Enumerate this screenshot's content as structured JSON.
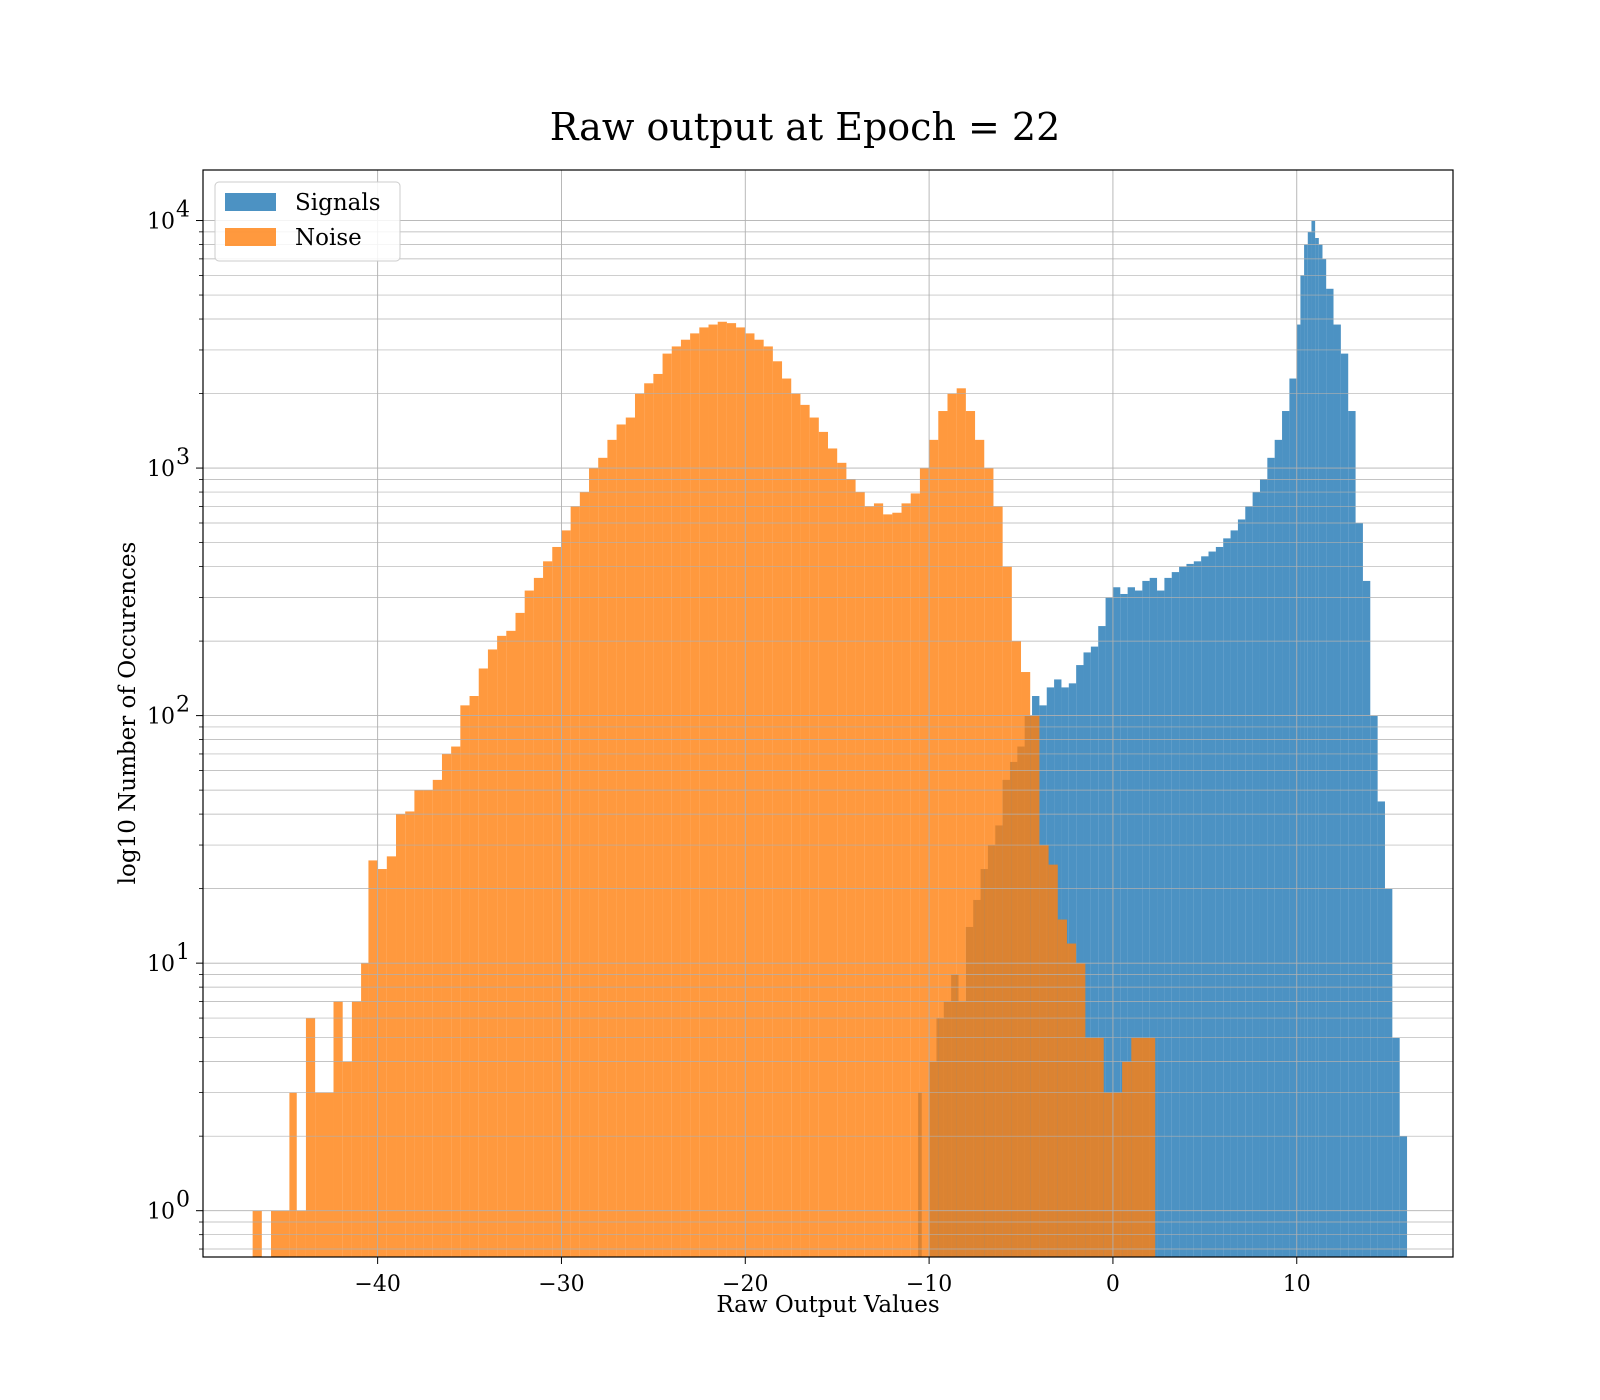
{
  "chart_data": {
    "type": "bar",
    "title": "Raw output at Epoch = 22",
    "xlabel": "Raw Output Values",
    "ylabel": "log10 Number of Occurences",
    "yscale": "log",
    "xlim": [
      -49.5,
      18.5
    ],
    "ylim": [
      0.65,
      16000
    ],
    "grid": true,
    "legend_position": "top-left",
    "x_ticks": [
      -40,
      -30,
      -20,
      -10,
      0,
      10
    ],
    "x_tick_labels": [
      "−40",
      "−30",
      "−20",
      "−10",
      "0",
      "10"
    ],
    "y_ticks": [
      1,
      10,
      100,
      1000,
      10000
    ],
    "y_tick_labels": [
      {
        "base": "10",
        "exp": "0"
      },
      {
        "base": "10",
        "exp": "1"
      },
      {
        "base": "10",
        "exp": "2"
      },
      {
        "base": "10",
        "exp": "3"
      },
      {
        "base": "10",
        "exp": "4"
      }
    ],
    "series": [
      {
        "name": "Signals",
        "color": "#1f77b4",
        "opacity": 0.8,
        "bins": [
          [
            -10.6,
            -10.4,
            3
          ],
          [
            -10.0,
            -9.6,
            4
          ],
          [
            -9.6,
            -9.2,
            6
          ],
          [
            -9.2,
            -8.8,
            7
          ],
          [
            -8.8,
            -8.4,
            9
          ],
          [
            -8.4,
            -8.0,
            7
          ],
          [
            -8.0,
            -7.6,
            14
          ],
          [
            -7.6,
            -7.2,
            18
          ],
          [
            -7.2,
            -6.8,
            24
          ],
          [
            -6.8,
            -6.4,
            30
          ],
          [
            -6.4,
            -6.0,
            36
          ],
          [
            -6.0,
            -5.6,
            55
          ],
          [
            -5.6,
            -5.2,
            65
          ],
          [
            -5.2,
            -4.8,
            75
          ],
          [
            -4.8,
            -4.4,
            100
          ],
          [
            -4.4,
            -4.0,
            120
          ],
          [
            -4.0,
            -3.6,
            110
          ],
          [
            -3.6,
            -3.2,
            130
          ],
          [
            -3.2,
            -2.8,
            140
          ],
          [
            -2.8,
            -2.4,
            130
          ],
          [
            -2.4,
            -2.0,
            135
          ],
          [
            -2.0,
            -1.6,
            160
          ],
          [
            -1.6,
            -1.2,
            180
          ],
          [
            -1.2,
            -0.8,
            190
          ],
          [
            -0.8,
            -0.4,
            230
          ],
          [
            -0.4,
            0.0,
            300
          ],
          [
            0.0,
            0.4,
            330
          ],
          [
            0.4,
            0.8,
            310
          ],
          [
            0.8,
            1.2,
            330
          ],
          [
            1.2,
            1.6,
            320
          ],
          [
            1.6,
            2.0,
            350
          ],
          [
            2.0,
            2.4,
            360
          ],
          [
            2.4,
            2.8,
            320
          ],
          [
            2.8,
            3.2,
            360
          ],
          [
            3.2,
            3.6,
            380
          ],
          [
            3.6,
            4.0,
            400
          ],
          [
            4.0,
            4.4,
            410
          ],
          [
            4.4,
            4.8,
            420
          ],
          [
            4.8,
            5.2,
            440
          ],
          [
            5.2,
            5.6,
            460
          ],
          [
            5.6,
            6.0,
            480
          ],
          [
            6.0,
            6.4,
            520
          ],
          [
            6.4,
            6.8,
            560
          ],
          [
            6.8,
            7.2,
            620
          ],
          [
            7.2,
            7.6,
            700
          ],
          [
            7.6,
            8.0,
            800
          ],
          [
            8.0,
            8.4,
            900
          ],
          [
            8.4,
            8.8,
            1100
          ],
          [
            8.8,
            9.2,
            1300
          ],
          [
            9.2,
            9.6,
            1700
          ],
          [
            9.6,
            10.0,
            2300
          ],
          [
            10.0,
            10.2,
            3800
          ],
          [
            10.2,
            10.4,
            6000
          ],
          [
            10.4,
            10.6,
            8000
          ],
          [
            10.6,
            10.8,
            9000
          ],
          [
            10.8,
            11.0,
            10000
          ],
          [
            11.0,
            11.2,
            8500
          ],
          [
            11.2,
            11.4,
            8000
          ],
          [
            11.4,
            11.6,
            7000
          ],
          [
            11.6,
            12.0,
            5300
          ],
          [
            12.0,
            12.4,
            3800
          ],
          [
            12.4,
            12.8,
            2900
          ],
          [
            12.8,
            13.2,
            1700
          ],
          [
            13.2,
            13.6,
            600
          ],
          [
            13.6,
            14.0,
            350
          ],
          [
            14.0,
            14.4,
            100
          ],
          [
            14.4,
            14.8,
            45
          ],
          [
            14.8,
            15.2,
            20
          ],
          [
            15.2,
            15.6,
            5
          ],
          [
            15.6,
            16.0,
            2
          ]
        ]
      },
      {
        "name": "Noise",
        "color": "#ff7f0e",
        "opacity": 0.8,
        "bins": [
          [
            -46.8,
            -46.3,
            1
          ],
          [
            -46.3,
            -45.8,
            0
          ],
          [
            -45.8,
            -44.8,
            1
          ],
          [
            -44.8,
            -44.4,
            3
          ],
          [
            -44.4,
            -43.9,
            1
          ],
          [
            -43.9,
            -43.4,
            6
          ],
          [
            -43.4,
            -42.4,
            3
          ],
          [
            -42.4,
            -41.9,
            7
          ],
          [
            -41.9,
            -41.4,
            4
          ],
          [
            -41.4,
            -40.9,
            7
          ],
          [
            -40.9,
            -40.5,
            10
          ],
          [
            -40.5,
            -40.0,
            26
          ],
          [
            -40.0,
            -39.5,
            24
          ],
          [
            -39.5,
            -39.0,
            27
          ],
          [
            -39.0,
            -38.5,
            40
          ],
          [
            -38.5,
            -38.0,
            41
          ],
          [
            -38.0,
            -37.5,
            50
          ],
          [
            -37.5,
            -37.0,
            50
          ],
          [
            -37.0,
            -36.5,
            55
          ],
          [
            -36.5,
            -36.0,
            70
          ],
          [
            -36.0,
            -35.5,
            75
          ],
          [
            -35.5,
            -35.0,
            110
          ],
          [
            -35.0,
            -34.5,
            120
          ],
          [
            -34.5,
            -34.0,
            155
          ],
          [
            -34.0,
            -33.5,
            185
          ],
          [
            -33.5,
            -33.0,
            210
          ],
          [
            -33.0,
            -32.5,
            220
          ],
          [
            -32.5,
            -32.0,
            260
          ],
          [
            -32.0,
            -31.5,
            320
          ],
          [
            -31.5,
            -31.0,
            360
          ],
          [
            -31.0,
            -30.5,
            420
          ],
          [
            -30.5,
            -30.0,
            480
          ],
          [
            -30.0,
            -29.5,
            560
          ],
          [
            -29.5,
            -29.0,
            700
          ],
          [
            -29.0,
            -28.5,
            800
          ],
          [
            -28.5,
            -28.0,
            1000
          ],
          [
            -28.0,
            -27.5,
            1100
          ],
          [
            -27.5,
            -27.0,
            1300
          ],
          [
            -27.0,
            -26.5,
            1500
          ],
          [
            -26.5,
            -26.0,
            1600
          ],
          [
            -26.0,
            -25.5,
            2000
          ],
          [
            -25.5,
            -25.0,
            2200
          ],
          [
            -25.0,
            -24.5,
            2400
          ],
          [
            -24.5,
            -24.0,
            2900
          ],
          [
            -24.0,
            -23.5,
            3100
          ],
          [
            -23.5,
            -23.0,
            3300
          ],
          [
            -23.0,
            -22.5,
            3500
          ],
          [
            -22.5,
            -22.0,
            3700
          ],
          [
            -22.0,
            -21.5,
            3800
          ],
          [
            -21.5,
            -21.0,
            3900
          ],
          [
            -21.0,
            -20.5,
            3850
          ],
          [
            -20.5,
            -20.0,
            3700
          ],
          [
            -20.0,
            -19.5,
            3500
          ],
          [
            -19.5,
            -19.0,
            3300
          ],
          [
            -19.0,
            -18.5,
            3100
          ],
          [
            -18.5,
            -18.0,
            2700
          ],
          [
            -18.0,
            -17.5,
            2300
          ],
          [
            -17.5,
            -17.0,
            2000
          ],
          [
            -17.0,
            -16.5,
            1800
          ],
          [
            -16.5,
            -16.0,
            1600
          ],
          [
            -16.0,
            -15.5,
            1400
          ],
          [
            -15.5,
            -15.0,
            1200
          ],
          [
            -15.0,
            -14.5,
            1050
          ],
          [
            -14.5,
            -14.0,
            900
          ],
          [
            -14.0,
            -13.5,
            800
          ],
          [
            -13.5,
            -13.0,
            700
          ],
          [
            -13.0,
            -12.5,
            720
          ],
          [
            -12.5,
            -12.0,
            650
          ],
          [
            -12.0,
            -11.5,
            660
          ],
          [
            -11.5,
            -11.0,
            720
          ],
          [
            -11.0,
            -10.5,
            790
          ],
          [
            -10.5,
            -10.0,
            1000
          ],
          [
            -10.0,
            -9.5,
            1300
          ],
          [
            -9.5,
            -9.0,
            1700
          ],
          [
            -9.0,
            -8.5,
            2000
          ],
          [
            -8.5,
            -8.0,
            2100
          ],
          [
            -8.0,
            -7.5,
            1700
          ],
          [
            -7.5,
            -7.0,
            1300
          ],
          [
            -7.0,
            -6.5,
            1000
          ],
          [
            -6.5,
            -6.0,
            700
          ],
          [
            -6.0,
            -5.5,
            400
          ],
          [
            -5.5,
            -5.0,
            200
          ],
          [
            -5.0,
            -4.5,
            150
          ],
          [
            -4.5,
            -4.0,
            100
          ],
          [
            -4.0,
            -3.5,
            30
          ],
          [
            -3.5,
            -3.0,
            25
          ],
          [
            -3.0,
            -2.5,
            15
          ],
          [
            -2.5,
            -2.0,
            12
          ],
          [
            -2.0,
            -1.5,
            10
          ],
          [
            -1.5,
            -0.5,
            5
          ],
          [
            -0.5,
            0.5,
            3
          ],
          [
            0.5,
            1.0,
            4
          ],
          [
            1.0,
            2.3,
            5
          ]
        ]
      }
    ]
  }
}
